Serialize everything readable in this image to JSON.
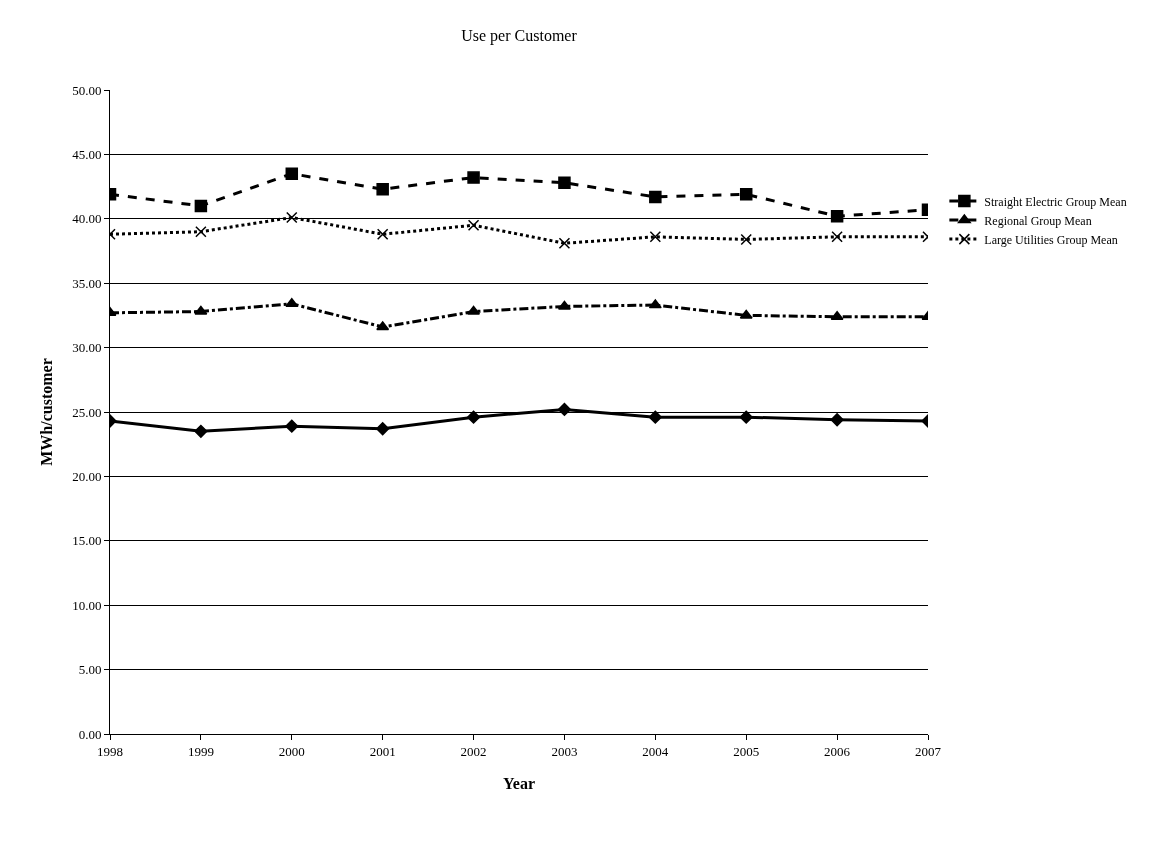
{
  "chart_data": {
    "type": "line",
    "title": "Use per Customer",
    "xlabel": "Year",
    "ylabel": "MWh/customer",
    "categories": [
      "1998",
      "1999",
      "2000",
      "2001",
      "2002",
      "2003",
      "2004",
      "2005",
      "2006",
      "2007"
    ],
    "series": [
      {
        "color": "#000000",
        "marker": "diamond",
        "line_style": "solid",
        "values": [
          24.3,
          23.5,
          23.9,
          23.7,
          24.6,
          25.2,
          24.6,
          24.6,
          24.4,
          24.3
        ]
      },
      {
        "name": "Straight Electric Group Mean",
        "color": "#000000",
        "marker": "square",
        "line_style": "dashed",
        "values": [
          41.9,
          41.0,
          43.5,
          42.3,
          43.2,
          42.8,
          41.7,
          41.9,
          40.2,
          40.7
        ]
      },
      {
        "name": "Regional Group Mean",
        "color": "#000000",
        "marker": "triangle",
        "line_style": "dashdot",
        "values": [
          32.7,
          32.8,
          33.4,
          31.6,
          32.8,
          33.2,
          33.3,
          32.5,
          32.4,
          32.4
        ]
      },
      {
        "name": "Large Utilities Group Mean",
        "color": "#000000",
        "marker": "cross",
        "line_style": "dotted",
        "values": [
          38.8,
          39.0,
          40.1,
          38.8,
          39.5,
          38.1,
          38.6,
          38.4,
          38.6,
          38.6
        ]
      }
    ],
    "ylim": [
      0,
      50
    ],
    "yticks": [
      {
        "value": 0,
        "label": "0.00"
      },
      {
        "value": 5,
        "label": "5.00"
      },
      {
        "value": 10,
        "label": "10.00"
      },
      {
        "value": 15,
        "label": "15.00"
      },
      {
        "value": 20,
        "label": "20.00"
      },
      {
        "value": 25,
        "label": "25.00"
      },
      {
        "value": 30,
        "label": "30.00"
      },
      {
        "value": 35,
        "label": "35.00"
      },
      {
        "value": 40,
        "label": "40.00"
      },
      {
        "value": 45,
        "label": "45.00"
      },
      {
        "value": 50,
        "label": "50.00"
      }
    ],
    "grid": "y",
    "legend": "right"
  }
}
